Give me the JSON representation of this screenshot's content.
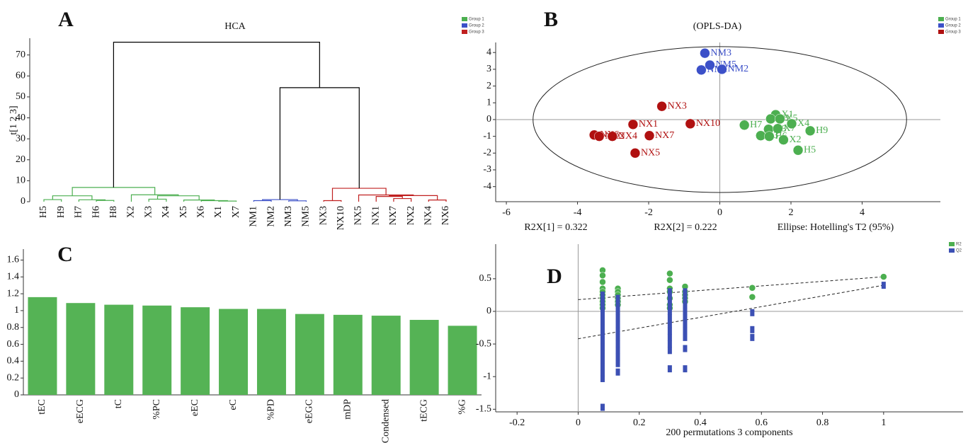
{
  "chart_data": [
    {
      "type": "dendrogram",
      "panel": "A",
      "title": "HCA",
      "ylabel": "t[1 2 3]",
      "ylim": [
        0,
        78
      ],
      "yticks": [
        0,
        10,
        20,
        30,
        40,
        50,
        60,
        70
      ],
      "legend": [
        {
          "name": "Group 1",
          "color": "#4caf50"
        },
        {
          "name": "Group 2",
          "color": "#3c50c8"
        },
        {
          "name": "Group 3",
          "color": "#c02020"
        }
      ],
      "leaves": [
        "H5",
        "H9",
        "H7",
        "H6",
        "H8",
        "X2",
        "X3",
        "X4",
        "X5",
        "X6",
        "X1",
        "X7",
        "NM1",
        "NM2",
        "NM3",
        "NM5",
        "NX3",
        "NX10",
        "NX5",
        "NX1",
        "NX7",
        "NX2",
        "NX4",
        "NX6"
      ],
      "merges": [
        {
          "left": 0,
          "right": 1,
          "height": 1.0,
          "color": "#4caf50"
        },
        {
          "left": 3,
          "right": 4,
          "height": 0.6,
          "color": "#4caf50"
        },
        {
          "left": 2,
          "right": 25,
          "height": 0.9,
          "color": "#4caf50"
        },
        {
          "left": 24,
          "right": 26,
          "height": 2.8,
          "color": "#4caf50"
        },
        {
          "left": 10,
          "right": 11,
          "height": 0.3,
          "color": "#4caf50"
        },
        {
          "left": 9,
          "right": 28,
          "height": 0.5,
          "color": "#4caf50"
        },
        {
          "left": 8,
          "right": 29,
          "height": 0.8,
          "color": "#4caf50"
        },
        {
          "left": 6,
          "right": 7,
          "height": 1.2,
          "color": "#4caf50"
        },
        {
          "left": 31,
          "right": 30,
          "height": 2.8,
          "color": "#4caf50"
        },
        {
          "left": 5,
          "right": 32,
          "height": 3.3,
          "color": "#4caf50"
        },
        {
          "left": 27,
          "right": 33,
          "height": 6.8,
          "color": "#4caf50"
        },
        {
          "left": 12,
          "right": 13,
          "height": 0.5,
          "color": "#3c50c8"
        },
        {
          "left": 14,
          "right": 15,
          "height": 0.4,
          "color": "#3c50c8"
        },
        {
          "left": 35,
          "right": 36,
          "height": 1.0,
          "color": "#3c50c8"
        },
        {
          "left": 16,
          "right": 17,
          "height": 0.5,
          "color": "#c02020"
        },
        {
          "left": 20,
          "right": 21,
          "height": 1.5,
          "color": "#c02020"
        },
        {
          "left": 19,
          "right": 39,
          "height": 2.5,
          "color": "#c02020"
        },
        {
          "left": 22,
          "right": 23,
          "height": 0.8,
          "color": "#c02020"
        },
        {
          "left": 40,
          "right": 41,
          "height": 2.9,
          "color": "#c02020"
        },
        {
          "left": 18,
          "right": 42,
          "height": 3.2,
          "color": "#c02020"
        },
        {
          "left": 38,
          "right": 43,
          "height": 6.4,
          "color": "#c02020"
        },
        {
          "left": 37,
          "right": 44,
          "height": 54.4,
          "color": "#000000"
        },
        {
          "left": 34,
          "right": 45,
          "height": 76.1,
          "color": "#000000"
        }
      ]
    },
    {
      "type": "scatter",
      "panel": "B",
      "title": "(OPLS-DA)",
      "xlim": [
        -6.3,
        6.2
      ],
      "xticks": [
        -6,
        -4,
        -2,
        0,
        2,
        4
      ],
      "ylim": [
        -4.9,
        4.6
      ],
      "yticks": [
        -4,
        -3,
        -2,
        -1,
        0,
        1,
        2,
        3,
        4
      ],
      "zero_lines": true,
      "ellipse": {
        "rx": 5.25,
        "ry": 4.35
      },
      "annotations": [
        "R2X[1] = 0.322",
        "R2X[2] = 0.222",
        "Ellipse: Hotelling's T2 (95%)"
      ],
      "series": [
        {
          "name": "Group 1",
          "color": "#4caf50",
          "marker": "circle",
          "labels": [
            "X1",
            "X6",
            "X5",
            "X4",
            "H9",
            "H7",
            "H8",
            "X7",
            "X3",
            "H6",
            "X2",
            "H5"
          ],
          "x": [
            1.57,
            1.43,
            1.69,
            2.02,
            2.54,
            0.69,
            1.37,
            1.63,
            1.15,
            1.39,
            1.79,
            2.2
          ],
          "y": [
            0.29,
            0.04,
            0.04,
            -0.25,
            -0.67,
            -0.33,
            -0.58,
            -0.54,
            -0.96,
            -1.0,
            -1.21,
            -1.83
          ]
        },
        {
          "name": "Group 2",
          "color": "#3c50c8",
          "marker": "circle",
          "labels": [
            "NM3",
            "NM5",
            "NM1",
            "NM2"
          ],
          "x": [
            -0.42,
            -0.28,
            -0.52,
            0.06
          ],
          "y": [
            3.96,
            3.25,
            2.96,
            3.0
          ]
        },
        {
          "name": "Group 3",
          "color": "#b01010",
          "marker": "circle",
          "labels": [
            "NX3",
            "NX1",
            "NX10",
            "NX6",
            "NX2",
            "NX4",
            "NX7",
            "NX5"
          ],
          "x": [
            -1.63,
            -2.44,
            -0.83,
            -3.53,
            -3.39,
            -3.02,
            -1.98,
            -2.38
          ],
          "y": [
            0.79,
            -0.29,
            -0.25,
            -0.92,
            -1.0,
            -1.0,
            -0.96,
            -2.0
          ]
        }
      ]
    },
    {
      "type": "bar",
      "panel": "C",
      "color": "#55b355",
      "ylim": [
        0,
        1.73
      ],
      "yticks": [
        0,
        0.2,
        0.4,
        0.6,
        0.8,
        1,
        1.2,
        1.4,
        1.6
      ],
      "categories": [
        "tEC",
        "eECG",
        "tC",
        "%PC",
        "eEC",
        "eC",
        "%PD",
        "eEGC",
        "mDP",
        "Condensed",
        "tECG",
        "%G"
      ],
      "values": [
        1.16,
        1.09,
        1.07,
        1.06,
        1.04,
        1.02,
        1.02,
        0.96,
        0.95,
        0.94,
        0.89,
        0.82
      ]
    },
    {
      "type": "scatter",
      "panel": "D",
      "xlabel": "200 permutations 3 components",
      "xlim": [
        -0.27,
        1.26
      ],
      "xticks": [
        -0.2,
        0,
        0.2,
        0.4,
        0.6,
        0.8,
        1
      ],
      "ylim": [
        -1.54,
        1.03
      ],
      "yticks": [
        -1.5,
        -1,
        -0.5,
        0,
        0.5
      ],
      "zero_lines": true,
      "lines": [
        {
          "x": [
            0,
            1
          ],
          "y": [
            0.18,
            0.53
          ]
        },
        {
          "x": [
            0,
            1
          ],
          "y": [
            -0.42,
            0.4
          ]
        }
      ],
      "series": [
        {
          "name": "R2",
          "color": "#4caf50",
          "marker": "circle",
          "x": [
            0.08,
            0.08,
            0.08,
            0.08,
            0.08,
            0.08,
            0.08,
            0.08,
            0.08,
            0.08,
            0.13,
            0.13,
            0.13,
            0.13,
            0.13,
            0.13,
            0.3,
            0.3,
            0.3,
            0.3,
            0.3,
            0.3,
            0.3,
            0.35,
            0.35,
            0.35,
            0.35,
            0.35,
            0.57,
            0.57,
            1
          ],
          "y": [
            0.63,
            0.55,
            0.45,
            0.35,
            0.3,
            0.25,
            0.2,
            0.15,
            0.1,
            0.05,
            0.35,
            0.3,
            0.25,
            0.2,
            0.15,
            0.1,
            0.58,
            0.48,
            0.35,
            0.3,
            0.2,
            0.1,
            0.05,
            0.38,
            0.3,
            0.25,
            0.2,
            0.15,
            0.36,
            0.22,
            0.53
          ]
        },
        {
          "name": "Q2",
          "color": "#3c50b4",
          "marker": "square",
          "x": [
            0.08,
            0.08,
            0.08,
            0.08,
            0.08,
            0.08,
            0.08,
            0.08,
            0.08,
            0.08,
            0.08,
            0.08,
            0.08,
            0.08,
            0.08,
            0.13,
            0.13,
            0.13,
            0.13,
            0.13,
            0.13,
            0.13,
            0.13,
            0.13,
            0.13,
            0.13,
            0.13,
            0.3,
            0.3,
            0.3,
            0.3,
            0.3,
            0.3,
            0.3,
            0.3,
            0.3,
            0.3,
            0.3,
            0.35,
            0.35,
            0.35,
            0.35,
            0.35,
            0.35,
            0.35,
            0.35,
            0.35,
            0.35,
            0.57,
            0.57,
            0.57,
            1
          ],
          "y": [
            0.25,
            0.15,
            0.05,
            -0.05,
            -0.15,
            -0.25,
            -0.35,
            -0.45,
            -0.55,
            -0.65,
            -0.75,
            -0.85,
            -0.95,
            -1.03,
            -1.47,
            0.2,
            0.1,
            0,
            -0.1,
            -0.2,
            -0.3,
            -0.4,
            -0.5,
            -0.6,
            -0.7,
            -0.8,
            -0.93,
            0.3,
            0.2,
            0.1,
            0,
            -0.1,
            -0.2,
            -0.3,
            -0.4,
            -0.5,
            -0.6,
            -0.88,
            0.3,
            0.2,
            0.1,
            0,
            -0.1,
            -0.2,
            -0.3,
            -0.4,
            -0.57,
            -0.88,
            -0.02,
            -0.28,
            -0.4,
            0.4
          ]
        }
      ]
    }
  ]
}
